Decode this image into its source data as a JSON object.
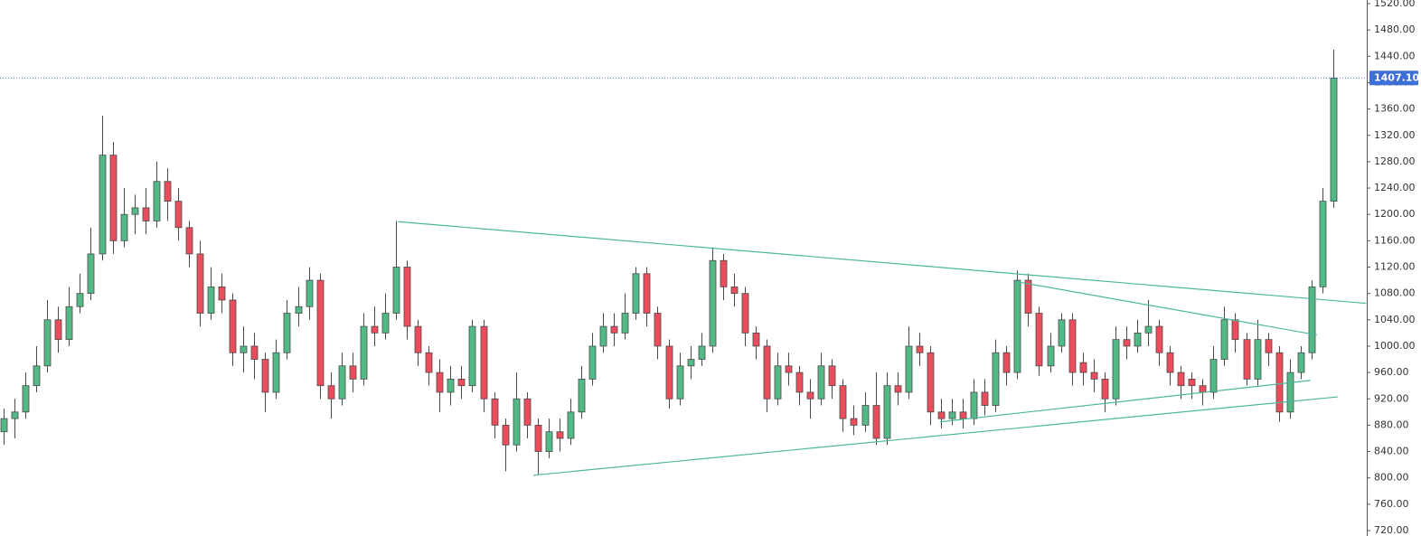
{
  "chart_data": {
    "type": "candlestick",
    "open": [
      870,
      890,
      900,
      940,
      970,
      1040,
      1010,
      1060,
      1080,
      1140,
      1290,
      1160,
      1200,
      1210,
      1190,
      1250,
      1220,
      1180,
      1140,
      1050,
      1090,
      1070,
      990,
      1000,
      980,
      930,
      990,
      1050,
      1060,
      1100,
      940,
      920,
      970,
      950,
      1030,
      1020,
      1050,
      1120,
      1030,
      990,
      960,
      930,
      950,
      940,
      1030,
      920,
      880,
      850,
      920,
      880,
      840,
      870,
      860,
      900,
      950,
      1000,
      1030,
      1020,
      1050,
      1110,
      1050,
      1000,
      920,
      970,
      980,
      1000,
      1130,
      1090,
      1080,
      1020,
      1000,
      920,
      970,
      960,
      930,
      920,
      970,
      940,
      890,
      880,
      910,
      860,
      940,
      930,
      1000,
      990,
      900,
      890,
      900,
      890,
      930,
      910,
      990,
      960,
      1100,
      1050,
      970,
      1000,
      1040,
      975,
      960,
      950,
      920,
      1010,
      1000,
      1020,
      1030,
      990,
      960,
      950,
      940,
      930,
      980,
      1040,
      1010,
      950,
      1010,
      990,
      900,
      960,
      990,
      1090,
      1220
    ],
    "high": [
      905,
      920,
      960,
      1000,
      1070,
      1060,
      1090,
      1110,
      1180,
      1350,
      1310,
      1240,
      1230,
      1240,
      1280,
      1270,
      1240,
      1190,
      1160,
      1120,
      1110,
      1080,
      1030,
      1020,
      990,
      1010,
      1070,
      1090,
      1120,
      1110,
      960,
      990,
      990,
      1050,
      1060,
      1080,
      1190,
      1130,
      1040,
      1000,
      980,
      970,
      970,
      1040,
      1040,
      930,
      890,
      960,
      930,
      890,
      890,
      890,
      920,
      970,
      1020,
      1050,
      1050,
      1080,
      1120,
      1120,
      1060,
      1010,
      990,
      1000,
      1020,
      1150,
      1140,
      1110,
      1090,
      1030,
      1010,
      990,
      990,
      970,
      950,
      990,
      980,
      950,
      910,
      930,
      960,
      960,
      960,
      1030,
      1020,
      1000,
      920,
      920,
      920,
      950,
      950,
      1010,
      1000,
      1115,
      1110,
      1060,
      1020,
      1050,
      1050,
      990,
      980,
      960,
      1030,
      1030,
      1040,
      1070,
      1040,
      1000,
      970,
      960,
      950,
      1000,
      1060,
      1050,
      1020,
      1040,
      1020,
      1000,
      980,
      1000,
      1100,
      1240,
      1450
    ],
    "low": [
      850,
      860,
      890,
      930,
      960,
      990,
      1000,
      1050,
      1070,
      1130,
      1140,
      1150,
      1170,
      1170,
      1180,
      1190,
      1160,
      1120,
      1030,
      1040,
      1050,
      970,
      960,
      950,
      900,
      920,
      980,
      1030,
      1040,
      920,
      890,
      910,
      930,
      940,
      1000,
      1010,
      1040,
      1010,
      970,
      940,
      900,
      910,
      920,
      930,
      900,
      860,
      810,
      840,
      860,
      805,
      830,
      840,
      850,
      890,
      940,
      990,
      1000,
      1010,
      1040,
      1030,
      980,
      905,
      910,
      950,
      970,
      990,
      1070,
      1060,
      1000,
      980,
      900,
      910,
      940,
      910,
      890,
      910,
      920,
      870,
      865,
      870,
      850,
      850,
      910,
      920,
      970,
      880,
      875,
      880,
      875,
      880,
      895,
      900,
      940,
      950,
      1030,
      955,
      960,
      990,
      940,
      940,
      930,
      900,
      910,
      980,
      990,
      1000,
      970,
      940,
      920,
      920,
      910,
      920,
      970,
      990,
      940,
      940,
      970,
      885,
      890,
      950,
      980,
      1080,
      1210
    ],
    "close": [
      890,
      900,
      940,
      970,
      1040,
      1010,
      1060,
      1080,
      1140,
      1290,
      1160,
      1200,
      1210,
      1190,
      1250,
      1220,
      1180,
      1140,
      1050,
      1090,
      1070,
      990,
      1000,
      980,
      930,
      990,
      1050,
      1060,
      1100,
      940,
      920,
      970,
      950,
      1030,
      1020,
      1050,
      1120,
      1030,
      990,
      960,
      930,
      950,
      940,
      1030,
      920,
      880,
      850,
      920,
      880,
      840,
      870,
      860,
      900,
      950,
      1000,
      1030,
      1020,
      1050,
      1110,
      1050,
      1000,
      920,
      970,
      980,
      1000,
      1130,
      1090,
      1080,
      1020,
      1000,
      920,
      970,
      960,
      930,
      920,
      970,
      940,
      890,
      880,
      910,
      860,
      940,
      930,
      1000,
      990,
      900,
      890,
      900,
      890,
      930,
      910,
      990,
      960,
      1100,
      1050,
      970,
      1000,
      1040,
      960,
      960,
      950,
      920,
      1010,
      1000,
      1020,
      1030,
      990,
      960,
      940,
      940,
      930,
      980,
      1040,
      1010,
      950,
      1010,
      990,
      900,
      960,
      990,
      1090,
      1220,
      1407.1
    ],
    "up_color": "#53b987",
    "down_color": "#eb4d5c",
    "wick_color": "#4a4a4a",
    "ylim": [
      720,
      1520
    ],
    "yticks": [
      {
        "value": 720,
        "label": "720.00"
      },
      {
        "value": 760,
        "label": "760.00"
      },
      {
        "value": 800,
        "label": "800.00"
      },
      {
        "value": 840,
        "label": "840.00"
      },
      {
        "value": 880,
        "label": "880.00"
      },
      {
        "value": 920,
        "label": "920.00"
      },
      {
        "value": 960,
        "label": "960.00"
      },
      {
        "value": 1000,
        "label": "1000.00"
      },
      {
        "value": 1040,
        "label": "1040.00"
      },
      {
        "value": 1080,
        "label": "1080.00"
      },
      {
        "value": 1120,
        "label": "1120.00"
      },
      {
        "value": 1160,
        "label": "1160.00"
      },
      {
        "value": 1200,
        "label": "1200.00"
      },
      {
        "value": 1240,
        "label": "1240.00"
      },
      {
        "value": 1280,
        "label": "1280.00"
      },
      {
        "value": 1320,
        "label": "1320.00"
      },
      {
        "value": 1360,
        "label": "1360.00"
      },
      {
        "value": 1400,
        "label": "1400.00"
      },
      {
        "value": 1440,
        "label": "1440.00"
      },
      {
        "value": 1480,
        "label": "1480.00"
      },
      {
        "value": 1520,
        "label": "1520.00"
      }
    ],
    "current_price": {
      "value": 1407.1,
      "label": "1407.10",
      "color": "#3d6fd6"
    },
    "trendline_color": "#4db89a",
    "trendlines": [
      {
        "x": [
          36.2,
          125.0
        ],
        "y": [
          1189,
          1065
        ]
      },
      {
        "x": [
          48.6,
          122.4
        ],
        "y": [
          804,
          923
        ]
      },
      {
        "x": [
          85.9,
          119.9
        ],
        "y": [
          885,
          948
        ]
      },
      {
        "x": [
          92.9,
          120.5
        ],
        "y": [
          1098,
          1017
        ]
      }
    ]
  }
}
